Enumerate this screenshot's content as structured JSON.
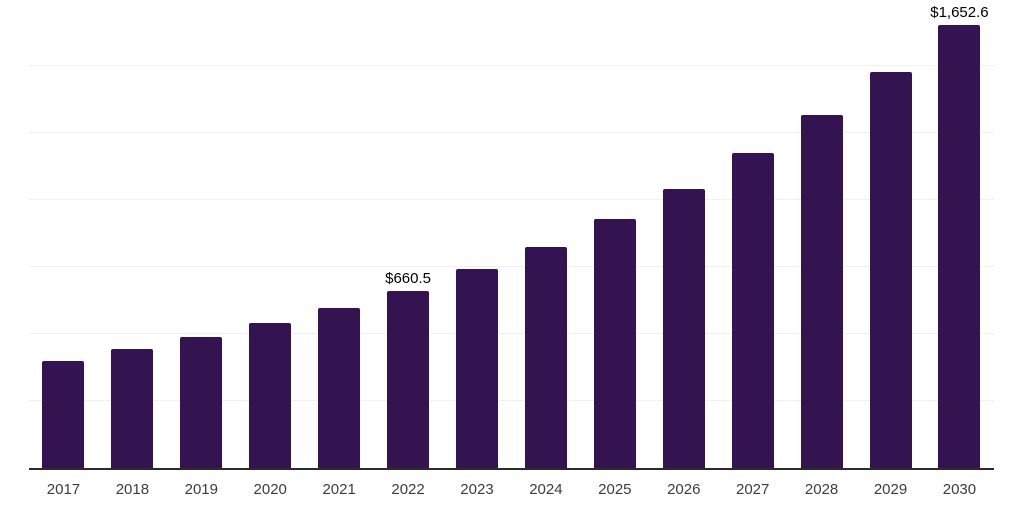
{
  "chart_data": {
    "type": "bar",
    "categories": [
      "2017",
      "2018",
      "2019",
      "2020",
      "2021",
      "2022",
      "2023",
      "2024",
      "2025",
      "2026",
      "2027",
      "2028",
      "2029",
      "2030"
    ],
    "values": [
      399,
      443,
      489,
      541,
      597,
      660.5,
      742,
      825,
      929,
      1041,
      1175,
      1317,
      1477,
      1652.6
    ],
    "data_labels": {
      "2022": "$660.5",
      "2030": "$1,652.6"
    },
    "value_prefix": "$",
    "ylim": [
      0,
      1750
    ],
    "gridline_step": 250,
    "grid": true,
    "legend": false,
    "colors": {
      "bar": "#331450",
      "gridline": "#f1f1f1",
      "axis_line": "#2b2b2b",
      "tick_label": "#3d3d3d",
      "data_label": "#000000",
      "background": "#ffffff"
    }
  }
}
